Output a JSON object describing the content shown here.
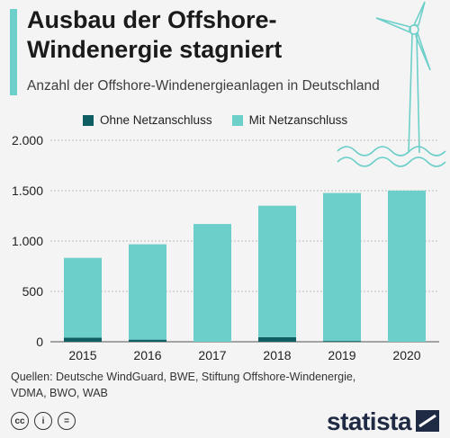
{
  "header": {
    "title_line1": "Ausbau der Offshore-",
    "title_line2": "Windenergie stagniert",
    "subtitle": "Anzahl der Offshore-Windenergieanlagen in Deutschland"
  },
  "legend": {
    "items": [
      {
        "label": "Ohne Netzanschluss",
        "color": "#0e5e63"
      },
      {
        "label": "Mit Netzanschluss",
        "color": "#6dcfc9"
      }
    ]
  },
  "chart_data": {
    "type": "bar",
    "stacked": true,
    "categories": [
      "2015",
      "2016",
      "2017",
      "2018",
      "2019",
      "2020"
    ],
    "series": [
      {
        "name": "Ohne Netzanschluss",
        "color": "#0e5e63",
        "values": [
          41,
          21,
          0,
          46,
          8,
          0
        ]
      },
      {
        "name": "Mit Netzanschluss",
        "color": "#6dcfc9",
        "values": [
          792,
          947,
          1169,
          1305,
          1469,
          1501
        ]
      }
    ],
    "yticks": [
      0,
      500,
      1000,
      1500,
      2000
    ],
    "ytick_labels": [
      "0",
      "500",
      "1.000",
      "1.500",
      "2.000"
    ],
    "ylim": [
      0,
      2000
    ],
    "grid": true,
    "legend_position": "top"
  },
  "footer": {
    "source_line1": "Quellen: Deutsche WindGuard, BWE, Stiftung Offshore-Windenergie,",
    "source_line2": "VDMA, BWO, WAB",
    "cc_icons": [
      "cc-icon",
      "person-icon",
      "equals-icon"
    ],
    "cc_glyphs": [
      "cc",
      "i",
      "="
    ],
    "logo_text": "statista"
  }
}
